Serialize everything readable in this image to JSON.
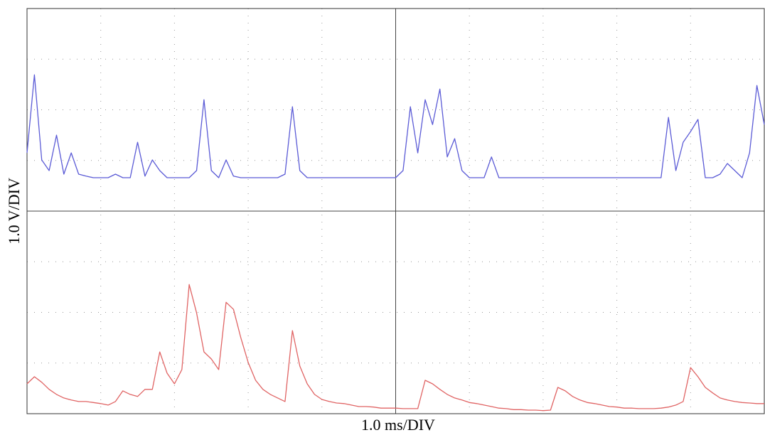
{
  "chart_data": {
    "type": "line",
    "xlabel": "1.0 ms/DIV",
    "ylabel": "1.0 V/DIV",
    "xlim": [
      0,
      10
    ],
    "ylim": [
      0,
      8
    ],
    "xticks": [
      0,
      1,
      2,
      3,
      4,
      5,
      6,
      7,
      8,
      9,
      10
    ],
    "yticks": [
      0,
      1,
      2,
      3,
      4,
      5,
      6,
      7,
      8
    ],
    "grid": true,
    "x": [
      0,
      0.1,
      0.2,
      0.3,
      0.4,
      0.5,
      0.6,
      0.7,
      0.8,
      0.9,
      1,
      1.1,
      1.2,
      1.3,
      1.4,
      1.5,
      1.6,
      1.7,
      1.8,
      1.9,
      2,
      2.1,
      2.2,
      2.3,
      2.4,
      2.5,
      2.6,
      2.7,
      2.8,
      2.9,
      3,
      3.1,
      3.2,
      3.3,
      3.4,
      3.5,
      3.6,
      3.7,
      3.8,
      3.9,
      4,
      4.1,
      4.2,
      4.3,
      4.4,
      4.5,
      4.6,
      4.7,
      4.8,
      4.9,
      5,
      5.1,
      5.2,
      5.3,
      5.4,
      5.5,
      5.6,
      5.7,
      5.8,
      5.9,
      6,
      6.1,
      6.2,
      6.3,
      6.4,
      6.5,
      6.6,
      6.7,
      6.8,
      6.9,
      7,
      7.1,
      7.2,
      7.3,
      7.4,
      7.5,
      7.6,
      7.7,
      7.8,
      7.9,
      8,
      8.1,
      8.2,
      8.3,
      8.4,
      8.5,
      8.6,
      8.7,
      8.8,
      8.9,
      9,
      9.1,
      9.2,
      9.3,
      9.4,
      9.5,
      9.6,
      9.7,
      9.8,
      9.9,
      10
    ],
    "series": [
      {
        "color": "#5b5bd6",
        "values": [
          5.15,
          6.69,
          5.01,
          4.8,
          5.5,
          4.73,
          5.15,
          4.73,
          4.69,
          4.66,
          4.66,
          4.66,
          4.73,
          4.66,
          4.66,
          5.36,
          4.69,
          5.01,
          4.8,
          4.66,
          4.66,
          4.66,
          4.66,
          4.8,
          6.2,
          4.8,
          4.66,
          5.01,
          4.69,
          4.66,
          4.66,
          4.66,
          4.66,
          4.66,
          4.66,
          4.73,
          6.06,
          4.8,
          4.66,
          4.66,
          4.66,
          4.66,
          4.66,
          4.66,
          4.66,
          4.66,
          4.66,
          4.66,
          4.66,
          4.66,
          4.66,
          4.8,
          6.06,
          5.15,
          6.2,
          5.71,
          6.41,
          5.07,
          5.43,
          4.8,
          4.66,
          4.66,
          4.66,
          5.07,
          4.66,
          4.66,
          4.66,
          4.66,
          4.66,
          4.66,
          4.66,
          4.66,
          4.66,
          4.66,
          4.66,
          4.66,
          4.66,
          4.66,
          4.66,
          4.66,
          4.66,
          4.66,
          4.66,
          4.66,
          4.66,
          4.66,
          4.66,
          5.85,
          4.8,
          5.36,
          5.57,
          5.81,
          4.66,
          4.66,
          4.73,
          4.94,
          4.8,
          4.66,
          5.15,
          6.48,
          5.71
        ]
      },
      {
        "color": "#e06464",
        "values": [
          0.59,
          0.73,
          0.62,
          0.48,
          0.38,
          0.31,
          0.27,
          0.24,
          0.24,
          0.22,
          0.2,
          0.17,
          0.24,
          0.45,
          0.38,
          0.34,
          0.48,
          0.48,
          1.22,
          0.8,
          0.59,
          0.87,
          2.55,
          1.99,
          1.22,
          1.08,
          0.87,
          2.2,
          2.06,
          1.5,
          1.01,
          0.66,
          0.48,
          0.38,
          0.31,
          0.24,
          1.64,
          0.94,
          0.59,
          0.38,
          0.28,
          0.24,
          0.21,
          0.2,
          0.17,
          0.14,
          0.14,
          0.13,
          0.11,
          0.11,
          0.11,
          0.1,
          0.1,
          0.1,
          0.66,
          0.59,
          0.48,
          0.38,
          0.31,
          0.27,
          0.22,
          0.2,
          0.17,
          0.14,
          0.11,
          0.1,
          0.08,
          0.08,
          0.07,
          0.07,
          0.06,
          0.07,
          0.52,
          0.45,
          0.34,
          0.27,
          0.22,
          0.2,
          0.17,
          0.14,
          0.13,
          0.11,
          0.11,
          0.1,
          0.1,
          0.1,
          0.11,
          0.13,
          0.17,
          0.24,
          0.91,
          0.73,
          0.52,
          0.41,
          0.31,
          0.27,
          0.24,
          0.22,
          0.21,
          0.2,
          0.2
        ]
      }
    ]
  }
}
